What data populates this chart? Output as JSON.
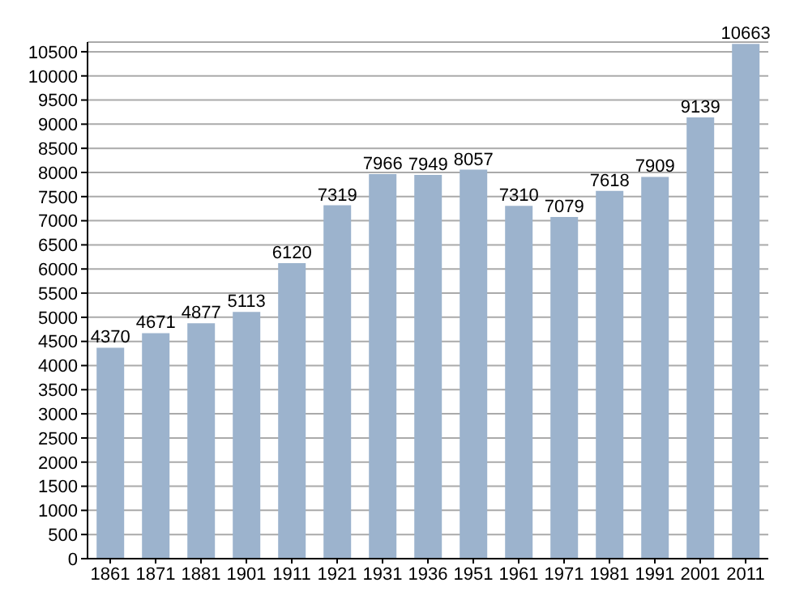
{
  "chart_data": {
    "type": "bar",
    "categories": [
      "1861",
      "1871",
      "1881",
      "1901",
      "1911",
      "1921",
      "1931",
      "1936",
      "1951",
      "1961",
      "1971",
      "1981",
      "1991",
      "2001",
      "2011"
    ],
    "values": [
      4370,
      4671,
      4877,
      5113,
      6120,
      7319,
      7966,
      7949,
      8057,
      7310,
      7079,
      7618,
      7909,
      9139,
      10663
    ],
    "color": "#9cb3cd",
    "ylim": [
      0,
      10700
    ],
    "yticks": [
      0,
      500,
      1000,
      1500,
      2000,
      2500,
      3000,
      3500,
      4000,
      4500,
      5000,
      5500,
      6000,
      6500,
      7000,
      7500,
      8000,
      8500,
      9000,
      9500,
      10000,
      10500
    ],
    "grid": "y",
    "data_labels": true
  }
}
